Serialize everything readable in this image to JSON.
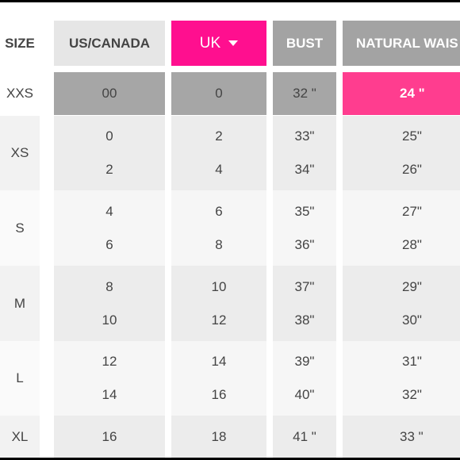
{
  "headers": {
    "size": "SIZE",
    "us_canada": "US/CANADA",
    "uk": "UK",
    "bust": "BUST",
    "natural_waist": "NATURAL WAIS"
  },
  "rows": [
    {
      "size": "XXS",
      "us": [
        "00"
      ],
      "uk": [
        "0"
      ],
      "bust": [
        "32 \""
      ],
      "waist": [
        "24 \""
      ]
    },
    {
      "size": "XS",
      "us": [
        "0",
        "2"
      ],
      "uk": [
        "2",
        "4"
      ],
      "bust": [
        "33\"",
        "34\""
      ],
      "waist": [
        "25\"",
        "26\""
      ]
    },
    {
      "size": "S",
      "us": [
        "4",
        "6"
      ],
      "uk": [
        "6",
        "8"
      ],
      "bust": [
        "35\"",
        "36\""
      ],
      "waist": [
        "27\"",
        "28\""
      ]
    },
    {
      "size": "M",
      "us": [
        "8",
        "10"
      ],
      "uk": [
        "10",
        "12"
      ],
      "bust": [
        "37\"",
        "38\""
      ],
      "waist": [
        "29\"",
        "30\""
      ]
    },
    {
      "size": "L",
      "us": [
        "12",
        "14"
      ],
      "uk": [
        "14",
        "16"
      ],
      "bust": [
        "39\"",
        "40\""
      ],
      "waist": [
        "31\"",
        "32\""
      ]
    },
    {
      "size": "XL",
      "us": [
        "16"
      ],
      "uk": [
        "18"
      ],
      "bust": [
        "41 \""
      ],
      "waist": [
        "33 \""
      ]
    }
  ],
  "icons": {
    "uk_dropdown": "caret-down-icon"
  },
  "colors": {
    "accent": "#ff0f8f",
    "highlight": "#ff3d8f",
    "header_dark": "#a3a3a3"
  }
}
